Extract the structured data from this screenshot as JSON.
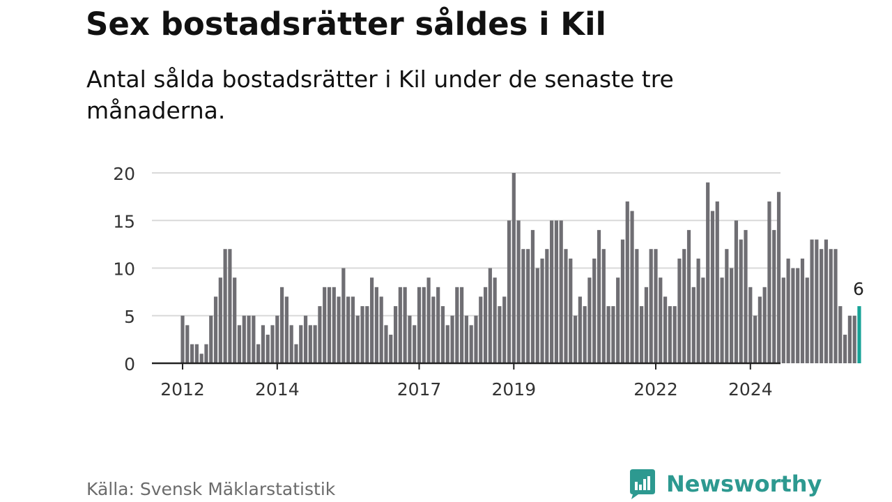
{
  "header": {
    "title": "Sex bostadsrätter såldes i Kil",
    "subtitle": "Antal sålda bostadsrätter i Kil under de senaste tre månaderna."
  },
  "footer": {
    "source": "Källa: Svensk Mäklarstatistik",
    "brand": "Newsworthy"
  },
  "colors": {
    "bar": "#6f6e73",
    "highlight": "#17a397",
    "grid": "#d9d9d9",
    "axis": "#222222",
    "brand": "#2d9990"
  },
  "chart_data": {
    "type": "bar",
    "title": "Sex bostadsrätter såldes i Kil",
    "subtitle": "Antal sålda bostadsrätter i Kil under de senaste tre månaderna.",
    "xlabel": "",
    "ylabel": "",
    "ylim": [
      0,
      20
    ],
    "yticks": [
      0,
      5,
      10,
      15,
      20
    ],
    "grid": true,
    "start_period": "2012-01",
    "period": "month",
    "xticks": [
      {
        "label": "2012",
        "index": 0
      },
      {
        "label": "2014",
        "index": 20
      },
      {
        "label": "2017",
        "index": 50
      },
      {
        "label": "2019",
        "index": 70
      },
      {
        "label": "2022",
        "index": 100
      },
      {
        "label": "2024",
        "index": 120
      }
    ],
    "values": [
      5,
      4,
      2,
      2,
      1,
      2,
      5,
      7,
      9,
      12,
      12,
      9,
      4,
      5,
      5,
      5,
      2,
      4,
      3,
      4,
      5,
      8,
      7,
      4,
      2,
      4,
      5,
      4,
      4,
      6,
      8,
      8,
      8,
      7,
      10,
      7,
      7,
      5,
      6,
      6,
      9,
      8,
      7,
      4,
      3,
      6,
      8,
      8,
      5,
      4,
      8,
      8,
      9,
      7,
      8,
      6,
      4,
      5,
      8,
      8,
      5,
      4,
      5,
      7,
      8,
      10,
      9,
      6,
      7,
      15,
      20,
      15,
      12,
      12,
      14,
      10,
      11,
      12,
      15,
      15,
      15,
      12,
      11,
      5,
      7,
      6,
      9,
      11,
      14,
      12,
      6,
      6,
      9,
      13,
      17,
      16,
      12,
      6,
      8,
      12,
      12,
      9,
      7,
      6,
      6,
      11,
      12,
      14,
      8,
      11,
      9,
      19,
      16,
      17,
      9,
      12,
      10,
      15,
      13,
      14,
      8,
      5,
      7,
      8,
      17,
      14,
      18,
      9,
      11,
      10,
      10,
      11,
      9,
      13,
      13,
      12,
      13,
      12,
      12,
      6,
      3,
      5,
      5,
      6
    ],
    "highlight_label": "6"
  }
}
